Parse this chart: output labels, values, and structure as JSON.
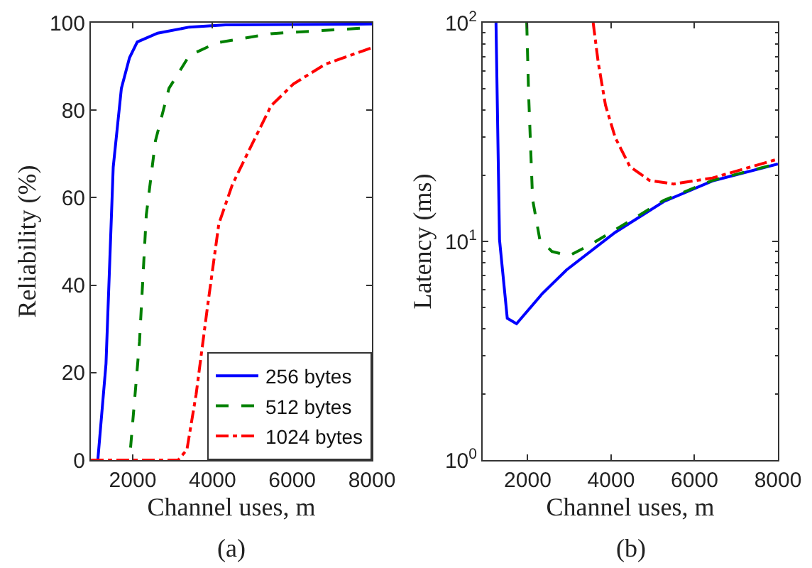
{
  "chart_data": [
    {
      "type": "line",
      "xlabel": "Channel uses, m",
      "ylabel": "Reliability (%)",
      "annotations": [
        "(a)"
      ],
      "xlim": [
        950,
        8000
      ],
      "xticks": [
        2000,
        4000,
        6000,
        8000
      ],
      "ylim": [
        0,
        100
      ],
      "yticks": [
        0,
        20,
        40,
        60,
        80,
        100
      ],
      "grid": false,
      "legend": "bottom right",
      "marker": "none",
      "series": [
        {
          "name": "256 bytes",
          "color": "#0000ff",
          "line_style": "solid",
          "x": [
            950,
            1125,
            1330,
            1511,
            1716,
            1920,
            2114,
            2625,
            3420,
            4330,
            8000
          ],
          "values": [
            0,
            0,
            22,
            67,
            85,
            92,
            95.6,
            97.6,
            99,
            99.5,
            99.7
          ]
        },
        {
          "name": "512 bytes",
          "color": "#008000",
          "line_style": "dashed",
          "x": [
            950,
            1920,
            2170,
            2340,
            2570,
            2910,
            3420,
            4100,
            5470,
            8000
          ],
          "values": [
            0,
            0,
            27,
            56,
            73,
            85,
            92.5,
            95.4,
            97.5,
            98.9
          ]
        },
        {
          "name": "1024 bytes",
          "color": "#ff0000",
          "line_style": "dashdot",
          "x": [
            950,
            3140,
            3360,
            3590,
            3875,
            4160,
            4500,
            4900,
            5470,
            6030,
            6830,
            8000
          ],
          "values": [
            0,
            0,
            2.4,
            15,
            35,
            54,
            63,
            70.5,
            81,
            86,
            90.5,
            94.3
          ]
        }
      ]
    },
    {
      "type": "line",
      "xlabel": "Channel uses, m",
      "ylabel": "Latency (ms)",
      "annotations": [
        "(b)"
      ],
      "log": "y",
      "xlim": [
        920,
        8000
      ],
      "xticks": [
        2000,
        4000,
        6000,
        8000
      ],
      "ylim": [
        1,
        100
      ],
      "yticks": [
        {
          "value": 1,
          "label": "10$^{0}$"
        },
        {
          "value": 10,
          "label": "10$^{1}$"
        },
        {
          "value": 100,
          "label": "10$^{2}$"
        }
      ],
      "grid": false,
      "legend": false,
      "marker": "none",
      "series": [
        {
          "color": "#0000ff",
          "line_style": "solid",
          "x": [
            1240,
            1324,
            1510,
            1732,
            2350,
            2930,
            4100,
            5260,
            6430,
            8000
          ],
          "values": [
            100,
            10.2,
            4.45,
            4.2,
            5.77,
            7.4,
            11,
            15.2,
            18.9,
            22.6
          ]
        },
        {
          "color": "#008000",
          "line_style": "dashed",
          "x": [
            1977,
            2023,
            2117,
            2290,
            2580,
            2990,
            3520,
            4100,
            5260,
            6430,
            8000
          ],
          "values": [
            100,
            46.7,
            15.6,
            10.2,
            9.0,
            8.6,
            9.7,
            11.3,
            15.4,
            19,
            22.7
          ]
        },
        {
          "color": "#ff0000",
          "line_style": "dashdot",
          "x": [
            3570,
            3690,
            3865,
            4100,
            4450,
            4920,
            5500,
            6430,
            8000
          ],
          "values": [
            100,
            66,
            42,
            29.8,
            22,
            19,
            18.3,
            19.5,
            23.8
          ]
        }
      ]
    }
  ]
}
